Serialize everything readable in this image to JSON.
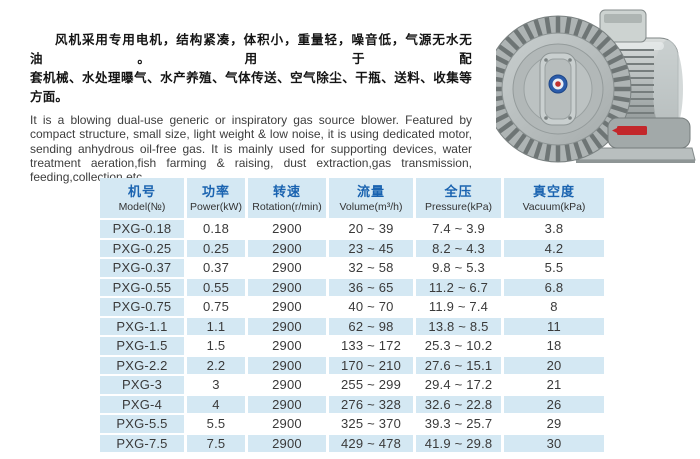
{
  "intro": {
    "zh_lines": [
      "风机采用专用电机，结构紧凑，体积小，重量轻，噪音低，气源无水无油。用于配",
      "套机械、水处理曝气、水产养殖、气体传送、空气除尘、干瓶、送料、收集等方面。"
    ],
    "en_lines": [
      "It is a blowing dual-use generic or inspiratory gas source blower. Featured by",
      "compact structure,  small size, light weight & low noise,  it is using dedicated motor,",
      "sending  anhydrous oil-free gas.  It is mainly used for supporting devices, water",
      "treatment aeration,fish farming & raising, dust extraction,gas transmission,",
      "feeding,collection etc."
    ]
  },
  "product_image": {
    "label": "ring blower product photo"
  },
  "table": {
    "headers": [
      {
        "zh": "机号",
        "en": "Model(№)"
      },
      {
        "zh": "功率",
        "en": "Power(kW)"
      },
      {
        "zh": "转速",
        "en": "Rotation(r/min)"
      },
      {
        "zh": "流量",
        "en": "Volume(m³/h)"
      },
      {
        "zh": "全压",
        "en": "Pressure(kPa)"
      },
      {
        "zh": "真空度",
        "en": "Vacuum(kPa)"
      }
    ],
    "column_keys": [
      "model",
      "power",
      "rotation",
      "volume",
      "pressure",
      "vacuum"
    ],
    "rows": [
      {
        "model": "PXG-0.18",
        "power": "0.18",
        "rotation": "2900",
        "volume": "20 ~ 39",
        "pressure": "7.4 ~ 3.9",
        "vacuum": "3.8"
      },
      {
        "model": "PXG-0.25",
        "power": "0.25",
        "rotation": "2900",
        "volume": "23 ~ 45",
        "pressure": "8.2 ~ 4.3",
        "vacuum": "4.2"
      },
      {
        "model": "PXG-0.37",
        "power": "0.37",
        "rotation": "2900",
        "volume": "32 ~ 58",
        "pressure": "9.8 ~ 5.3",
        "vacuum": "5.5"
      },
      {
        "model": "PXG-0.55",
        "power": "0.55",
        "rotation": "2900",
        "volume": "36 ~ 65",
        "pressure": "11.2 ~ 6.7",
        "vacuum": "6.8"
      },
      {
        "model": "PXG-0.75",
        "power": "0.75",
        "rotation": "2900",
        "volume": "40 ~ 70",
        "pressure": "11.9 ~ 7.4",
        "vacuum": "8"
      },
      {
        "model": "PXG-1.1",
        "power": "1.1",
        "rotation": "2900",
        "volume": "62 ~ 98",
        "pressure": "13.8 ~ 8.5",
        "vacuum": "11"
      },
      {
        "model": "PXG-1.5",
        "power": "1.5",
        "rotation": "2900",
        "volume": "133 ~ 172",
        "pressure": "25.3 ~ 10.2",
        "vacuum": "18"
      },
      {
        "model": "PXG-2.2",
        "power": "2.2",
        "rotation": "2900",
        "volume": "170 ~ 210",
        "pressure": "27.6 ~ 15.1",
        "vacuum": "20"
      },
      {
        "model": "PXG-3",
        "power": "3",
        "rotation": "2900",
        "volume": "255 ~ 299",
        "pressure": "29.4 ~ 17.2",
        "vacuum": "21"
      },
      {
        "model": "PXG-4",
        "power": "4",
        "rotation": "2900",
        "volume": "276 ~ 328",
        "pressure": "32.6 ~ 22.8",
        "vacuum": "26"
      },
      {
        "model": "PXG-5.5",
        "power": "5.5",
        "rotation": "2900",
        "volume": "325 ~ 370",
        "pressure": "39.3 ~ 25.7",
        "vacuum": "29"
      },
      {
        "model": "PXG-7.5",
        "power": "7.5",
        "rotation": "2900",
        "volume": "429 ~ 478",
        "pressure": "41.9 ~ 29.8",
        "vacuum": "30"
      }
    ]
  },
  "colors": {
    "cell_blue": "#d4e8f3",
    "header_text_blue": "#1a63b0",
    "label_red": "#c3272b"
  }
}
